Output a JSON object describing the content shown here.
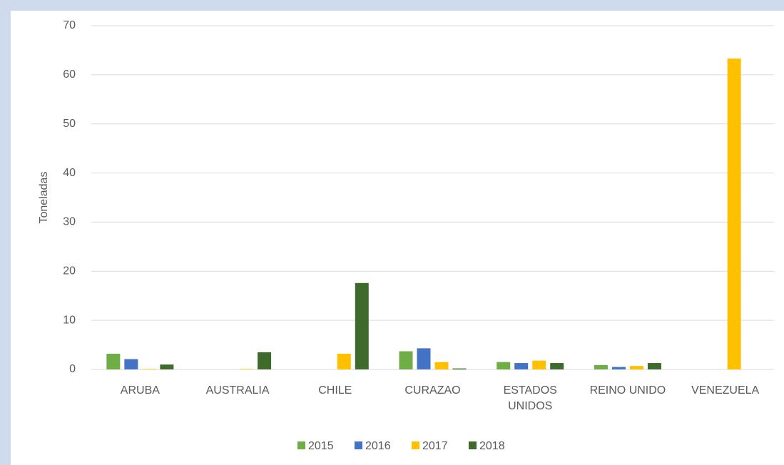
{
  "chart_data": {
    "type": "bar",
    "y_label": "Toneladas",
    "categories": [
      "ARUBA",
      "AUSTRALIA",
      "CHILE",
      "CURAZAO",
      "ESTADOS UNIDOS",
      "REINO UNIDO",
      "VENEZUELA"
    ],
    "series": [
      {
        "name": "2015",
        "color": "#70ad47",
        "values": [
          3.2,
          0,
          0,
          3.7,
          1.5,
          0.9,
          0
        ]
      },
      {
        "name": "2016",
        "color": "#4472c4",
        "values": [
          2.1,
          0,
          0,
          4.3,
          1.3,
          0.5,
          0
        ]
      },
      {
        "name": "2017",
        "color": "#ffc000",
        "values": [
          0.1,
          0.1,
          3.2,
          1.5,
          1.8,
          0.7,
          63.3
        ]
      },
      {
        "name": "2018",
        "color": "#3e6b2c",
        "values": [
          1.0,
          3.5,
          17.6,
          0.2,
          1.3,
          1.3,
          0
        ]
      }
    ],
    "ylim": [
      0,
      70
    ],
    "yticks": [
      0,
      10,
      20,
      30,
      40,
      50,
      60,
      70
    ],
    "grid": true
  }
}
